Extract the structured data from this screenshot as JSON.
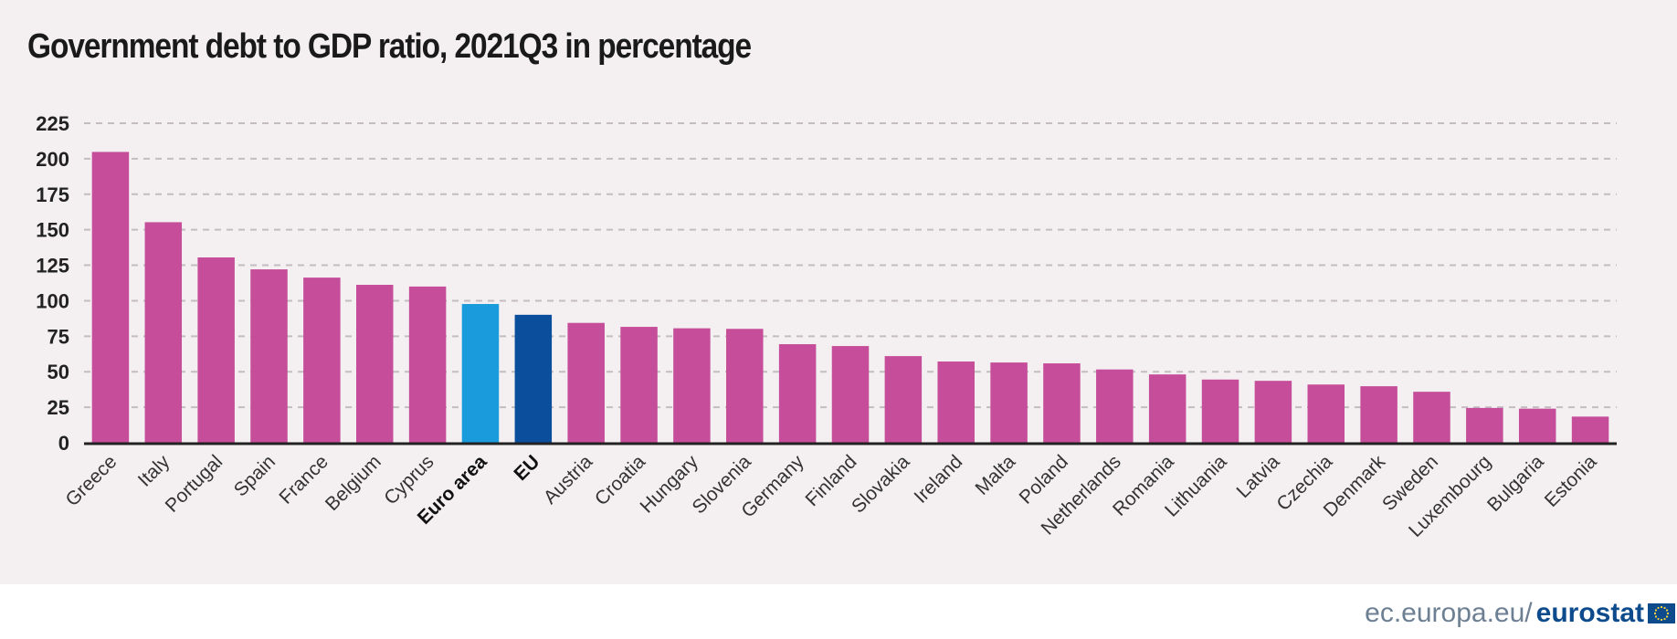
{
  "chart_data": {
    "type": "bar",
    "title": "Government debt to GDP ratio, 2021Q3 in percentage",
    "xlabel": "",
    "ylabel": "",
    "ylim": [
      0,
      225
    ],
    "yticks": [
      0,
      25,
      50,
      75,
      100,
      125,
      150,
      175,
      200,
      225
    ],
    "grid": true,
    "categories": [
      "Greece",
      "Italy",
      "Portugal",
      "Spain",
      "France",
      "Belgium",
      "Cyprus",
      "Euro area",
      "EU",
      "Austria",
      "Croatia",
      "Hungary",
      "Slovenia",
      "Germany",
      "Finland",
      "Slovakia",
      "Ireland",
      "Malta",
      "Poland",
      "Netherlands",
      "Romania",
      "Lithuania",
      "Latvia",
      "Czechia",
      "Denmark",
      "Sweden",
      "Luxembourg",
      "Bulgaria",
      "Estonia"
    ],
    "values": [
      204.8,
      155.3,
      130.5,
      122.1,
      116.3,
      111.2,
      110.0,
      97.7,
      90.1,
      84.4,
      81.6,
      80.6,
      80.2,
      69.4,
      68.1,
      61.0,
      57.2,
      56.5,
      55.9,
      51.6,
      48.1,
      44.5,
      43.6,
      41.0,
      39.8,
      35.9,
      24.5,
      24.0,
      18.4
    ],
    "highlight": {
      "Euro area": "#1a9bdc",
      "EU": "#0b4f9c"
    },
    "bold_categories": [
      "Euro area",
      "EU"
    ],
    "colors": {
      "bar": "#c64d99",
      "grid": "#c4bcc0",
      "axis": "#222222",
      "panel": "#f4f0f2"
    }
  },
  "footer": {
    "site": "ec.europa.eu/",
    "brand": "eurostat"
  }
}
